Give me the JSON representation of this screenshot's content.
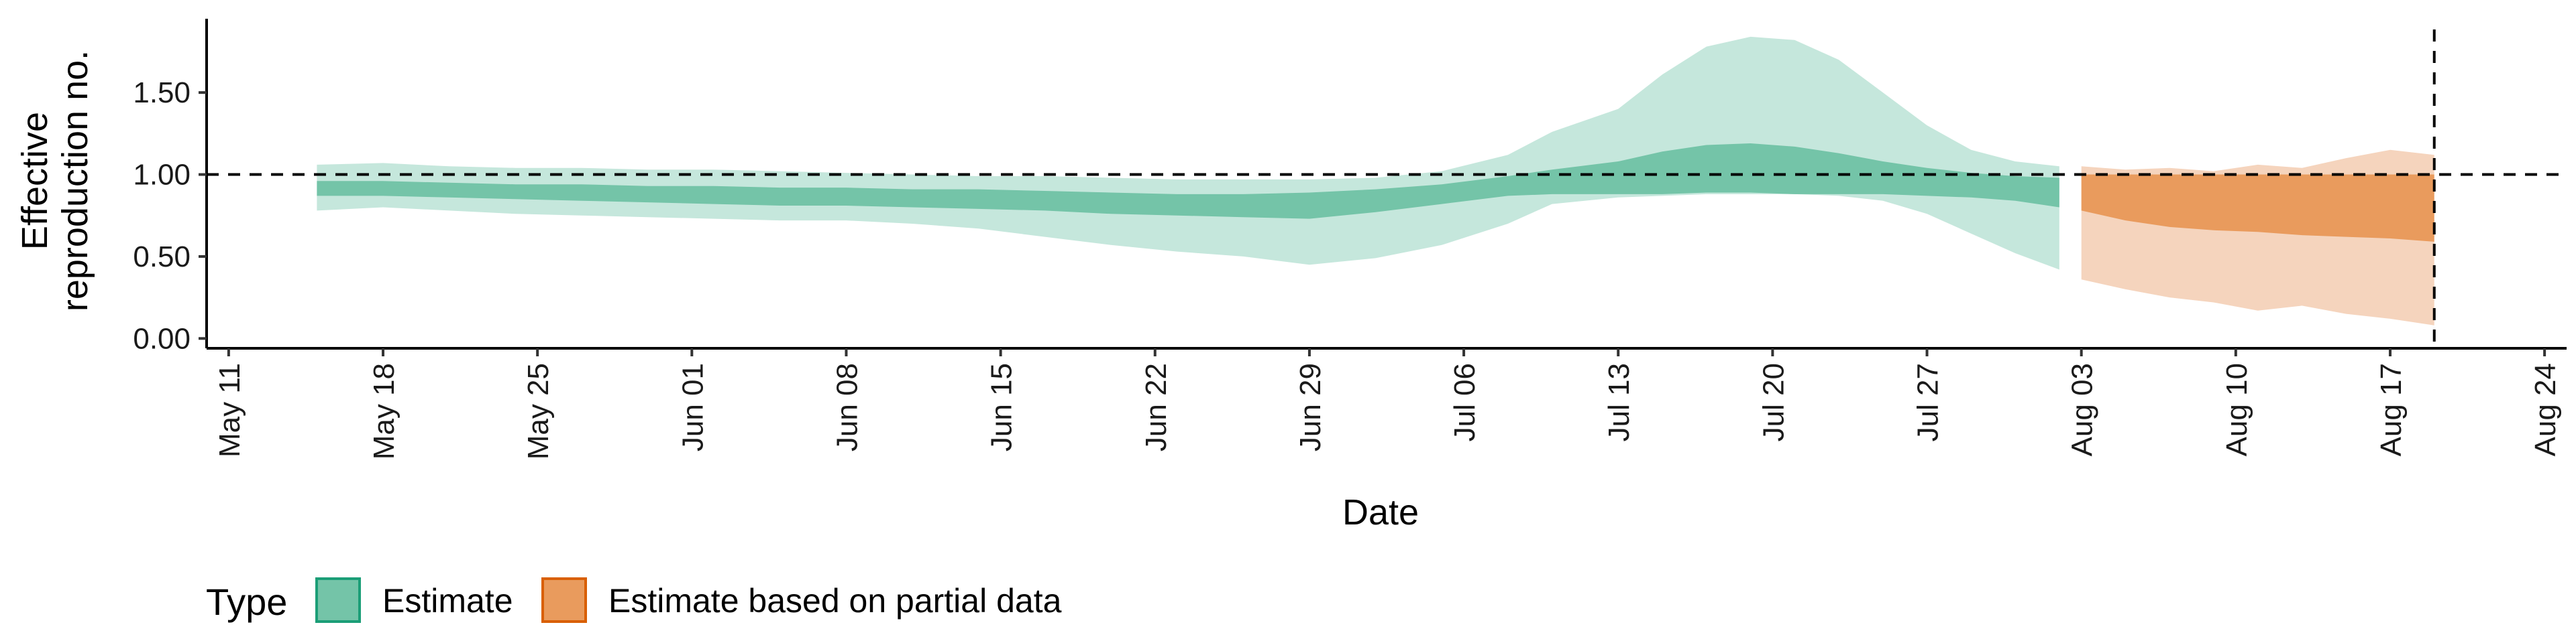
{
  "chart_data": {
    "type": "area",
    "xlabel": "Date",
    "ylabel_lines": [
      "Effective",
      "reproduction no."
    ],
    "x_ticks": [
      "May 11",
      "May 18",
      "May 25",
      "Jun 01",
      "Jun 08",
      "Jun 15",
      "Jun 22",
      "Jun 29",
      "Jul 06",
      "Jul 13",
      "Jul 20",
      "Jul 27",
      "Aug 03",
      "Aug 10",
      "Aug 17",
      "Aug 24"
    ],
    "x_tick_dates": [
      "2020-05-11",
      "2020-05-18",
      "2020-05-25",
      "2020-06-01",
      "2020-06-08",
      "2020-06-15",
      "2020-06-22",
      "2020-06-29",
      "2020-07-06",
      "2020-07-13",
      "2020-07-20",
      "2020-07-27",
      "2020-08-03",
      "2020-08-10",
      "2020-08-17",
      "2020-08-24"
    ],
    "y_ticks": [
      "0.00",
      "0.50",
      "1.00",
      "1.50"
    ],
    "xlim": [
      "2020-05-10",
      "2020-08-25"
    ],
    "ylim": [
      -0.06,
      1.95
    ],
    "reference_hline": 1.0,
    "reference_vline": "2020-08-19",
    "legend": {
      "title": "Type",
      "position": "bottom-left",
      "items": [
        {
          "label": "Estimate",
          "fill": "#74c4a8",
          "stroke": "#1b9e77"
        },
        {
          "label": "Estimate based on partial data",
          "fill": "#e99b5d",
          "stroke": "#d95f02"
        }
      ]
    },
    "series": [
      {
        "name": "Estimate",
        "color_outer": "#c5e7dc",
        "color_inner": "#74c4a8",
        "x": [
          "2020-05-15",
          "2020-05-18",
          "2020-05-21",
          "2020-05-24",
          "2020-05-27",
          "2020-05-30",
          "2020-06-02",
          "2020-06-05",
          "2020-06-08",
          "2020-06-11",
          "2020-06-14",
          "2020-06-17",
          "2020-06-20",
          "2020-06-23",
          "2020-06-26",
          "2020-06-29",
          "2020-07-02",
          "2020-07-05",
          "2020-07-08",
          "2020-07-10",
          "2020-07-13",
          "2020-07-15",
          "2020-07-17",
          "2020-07-19",
          "2020-07-21",
          "2020-07-23",
          "2020-07-25",
          "2020-07-27",
          "2020-07-29",
          "2020-07-31",
          "2020-08-02"
        ],
        "outer_low": [
          0.78,
          0.8,
          0.78,
          0.76,
          0.75,
          0.74,
          0.73,
          0.72,
          0.72,
          0.7,
          0.67,
          0.62,
          0.57,
          0.53,
          0.5,
          0.45,
          0.49,
          0.57,
          0.7,
          0.82,
          0.86,
          0.87,
          0.88,
          0.88,
          0.88,
          0.87,
          0.84,
          0.76,
          0.64,
          0.52,
          0.42
        ],
        "outer_high": [
          1.06,
          1.07,
          1.05,
          1.04,
          1.04,
          1.03,
          1.03,
          1.02,
          1.01,
          1.0,
          0.99,
          0.99,
          0.98,
          0.97,
          0.97,
          0.97,
          0.98,
          1.02,
          1.12,
          1.26,
          1.4,
          1.61,
          1.78,
          1.84,
          1.82,
          1.7,
          1.5,
          1.3,
          1.15,
          1.08,
          1.05
        ],
        "inner_low": [
          0.87,
          0.87,
          0.86,
          0.85,
          0.84,
          0.83,
          0.82,
          0.81,
          0.81,
          0.8,
          0.79,
          0.78,
          0.76,
          0.75,
          0.74,
          0.73,
          0.77,
          0.82,
          0.87,
          0.88,
          0.88,
          0.88,
          0.89,
          0.89,
          0.88,
          0.88,
          0.88,
          0.87,
          0.86,
          0.84,
          0.8
        ],
        "inner_high": [
          0.96,
          0.96,
          0.95,
          0.94,
          0.94,
          0.93,
          0.93,
          0.92,
          0.92,
          0.91,
          0.91,
          0.9,
          0.89,
          0.88,
          0.88,
          0.89,
          0.91,
          0.94,
          0.99,
          1.03,
          1.08,
          1.14,
          1.18,
          1.19,
          1.17,
          1.13,
          1.08,
          1.04,
          1.01,
          0.99,
          0.98
        ]
      },
      {
        "name": "Estimate based on partial data",
        "color_outer": "#f5d4bd",
        "color_inner": "#e99b5d",
        "x": [
          "2020-08-03",
          "2020-08-05",
          "2020-08-07",
          "2020-08-09",
          "2020-08-11",
          "2020-08-13",
          "2020-08-15",
          "2020-08-17",
          "2020-08-19"
        ],
        "outer_low": [
          0.36,
          0.3,
          0.25,
          0.22,
          0.17,
          0.2,
          0.15,
          0.12,
          0.08
        ],
        "outer_high": [
          1.05,
          1.03,
          1.04,
          1.02,
          1.06,
          1.04,
          1.1,
          1.15,
          1.12
        ],
        "inner_low": [
          0.78,
          0.72,
          0.68,
          0.66,
          0.65,
          0.63,
          0.62,
          0.61,
          0.59
        ],
        "inner_high": [
          1.0,
          1.0,
          1.0,
          1.0,
          1.0,
          1.0,
          1.0,
          1.0,
          1.0
        ]
      }
    ]
  }
}
